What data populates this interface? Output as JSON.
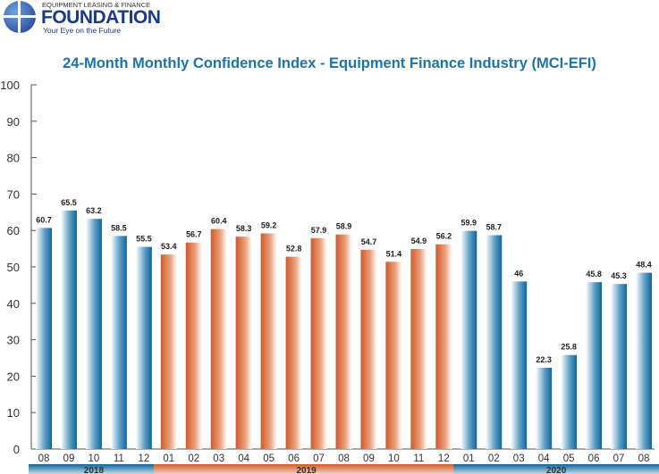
{
  "logo": {
    "top": "EQUIPMENT LEASING & FINANCE",
    "main": "FOUNDATION",
    "tagline": "Your Eye on the Future"
  },
  "colors": {
    "blue": "#1c75a8",
    "orange": "#d9693a",
    "title": "#1c75a8"
  },
  "chart_data": {
    "type": "bar",
    "title": "24-Month Monthly Confidence Index - Equipment Finance Industry (MCI-EFI)",
    "ylim": [
      0,
      100
    ],
    "yticks": [
      "0",
      "10",
      "20",
      "30",
      "40",
      "50",
      "60",
      "70",
      "80",
      "90",
      "100"
    ],
    "categories": [
      "08",
      "09",
      "10",
      "11",
      "12",
      "01",
      "02",
      "03",
      "04",
      "05",
      "06",
      "07",
      "08",
      "09",
      "10",
      "11",
      "12",
      "01",
      "02",
      "03",
      "04",
      "05",
      "06",
      "07",
      "08"
    ],
    "values": [
      60.7,
      65.5,
      63.2,
      58.5,
      55.5,
      53.4,
      56.7,
      60.4,
      58.3,
      59.2,
      52.8,
      57.9,
      58.9,
      54.7,
      51.4,
      54.9,
      56.2,
      59.9,
      58.7,
      46,
      22.3,
      25.8,
      45.8,
      45.3,
      48.4
    ],
    "labels": [
      "60.7",
      "65.5",
      "63.2",
      "58.5",
      "55.5",
      "53.4",
      "56.7",
      "60.4",
      "58.3",
      "59.2",
      "52.8",
      "57.9",
      "58.9",
      "54.7",
      "51.4",
      "54.9",
      "56.2",
      "59.9",
      "58.7",
      "46",
      "22.3",
      "25.8",
      "45.8",
      "45.3",
      "48.4"
    ],
    "years": [
      {
        "label": "2018",
        "count": 5,
        "color": "blue"
      },
      {
        "label": "2019",
        "count": 12,
        "color": "orange"
      },
      {
        "label": "2020",
        "count": 8,
        "color": "blue"
      }
    ]
  }
}
